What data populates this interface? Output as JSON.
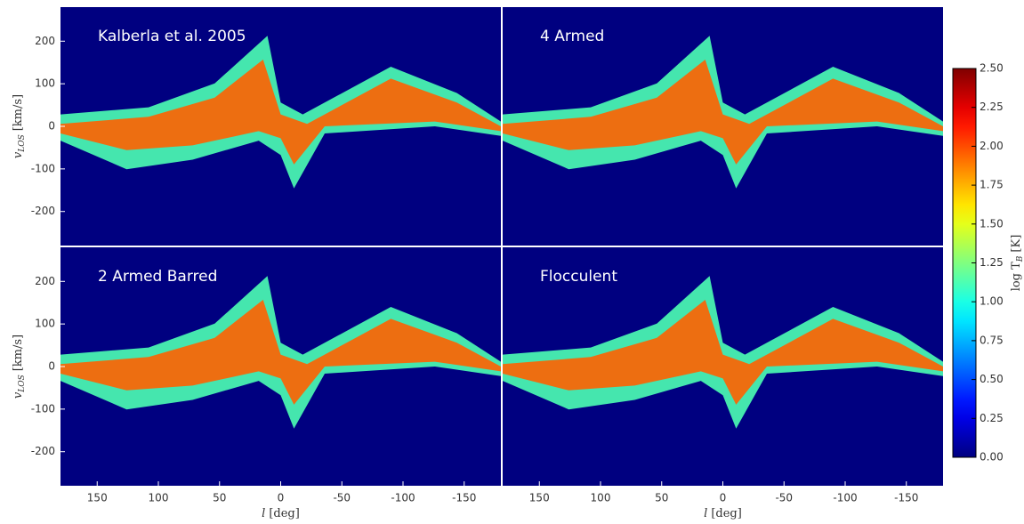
{
  "chart_data": [
    {
      "type": "lv-diagram",
      "title": "Kalberla et al. 2005",
      "xlim": [
        180,
        -180
      ],
      "ylim": [
        -280,
        280
      ],
      "yticks": [
        200,
        100,
        0,
        -100,
        -200
      ],
      "ylabel": {
        "main": "v",
        "sub": "LOS",
        "unit": "[km/s]"
      }
    },
    {
      "type": "lv-diagram",
      "title": "4 Armed",
      "xlim": [
        180,
        -180
      ],
      "ylim": [
        -280,
        280
      ]
    },
    {
      "type": "lv-diagram",
      "title": "2 Armed Barred",
      "xlim": [
        180,
        -180
      ],
      "ylim": [
        -280,
        280
      ],
      "xticks": [
        150,
        100,
        50,
        0,
        -50,
        -100,
        -150
      ],
      "yticks": [
        200,
        100,
        0,
        -100,
        -200
      ],
      "xlabel": {
        "main": "l",
        "unit": "[deg]"
      },
      "ylabel": {
        "main": "v",
        "sub": "LOS",
        "unit": "[km/s]"
      }
    },
    {
      "type": "lv-diagram",
      "title": "Flocculent",
      "xlim": [
        180,
        -180
      ],
      "ylim": [
        -280,
        280
      ],
      "xticks": [
        150,
        100,
        50,
        0,
        -50,
        -100,
        -150
      ],
      "xlabel": {
        "main": "l",
        "unit": "[deg]"
      }
    }
  ],
  "colorbar": {
    "colormap": "jet",
    "clim": [
      0,
      2.5
    ],
    "ticks": [
      {
        "value": 0,
        "label": "0.00"
      },
      {
        "value": 0.25,
        "label": "0.25"
      },
      {
        "value": 0.5,
        "label": "0.50"
      },
      {
        "value": 0.75,
        "label": "0.75"
      },
      {
        "value": 1,
        "label": "1.00"
      },
      {
        "value": 1.25,
        "label": "1.25"
      },
      {
        "value": 1.5,
        "label": "1.50"
      },
      {
        "value": 1.75,
        "label": "1.75"
      },
      {
        "value": 2,
        "label": "2.00"
      },
      {
        "value": 2.25,
        "label": "2.25"
      },
      {
        "value": 2.5,
        "label": "2.50"
      }
    ],
    "label": {
      "main": "log T",
      "sub": "B",
      "unit": "[K]"
    }
  }
}
